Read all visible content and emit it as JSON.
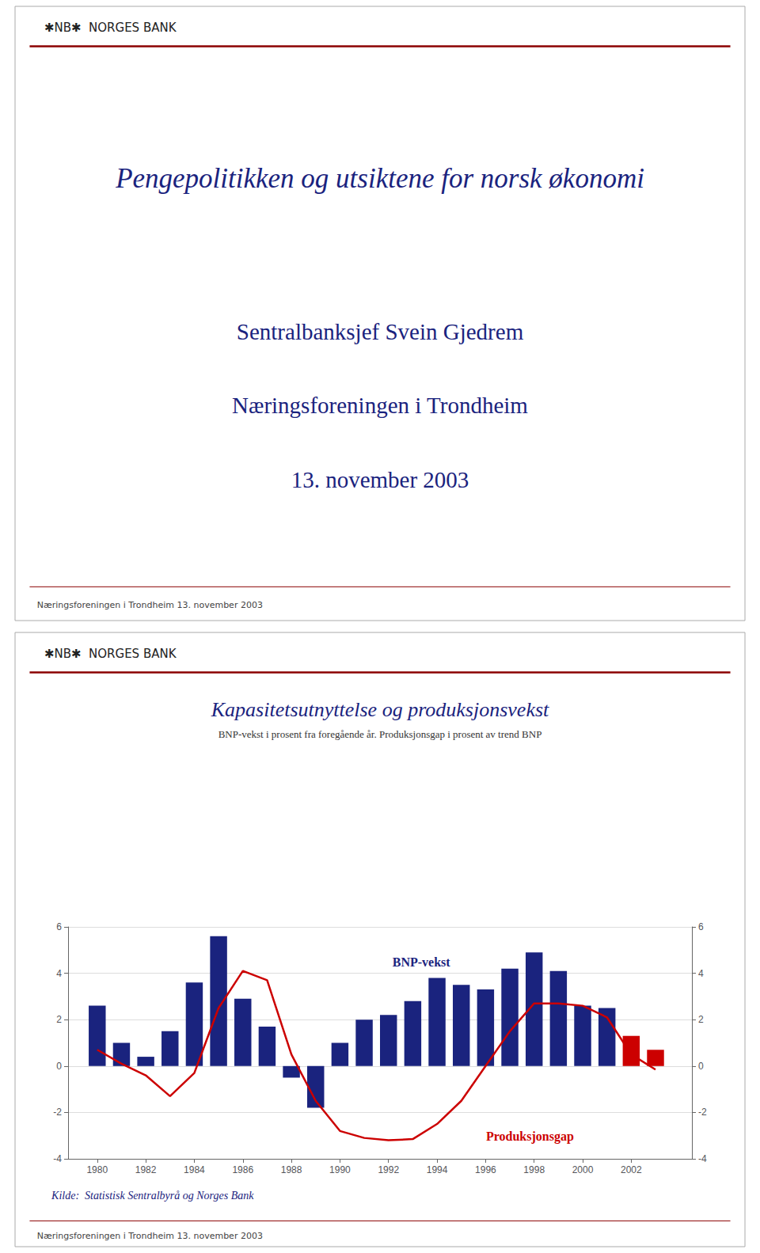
{
  "chart_data": {
    "type": "bar",
    "title": "Kapasitetsutnyttelse og produksjonsvekst",
    "subtitle": "BNP-vekst i prosent fra foregående år. Produksjonsgap i prosent av trend BNP",
    "annotations": [
      "✱NB✱  NORGES BANK",
      "Pengepolitikken og utsiktene for norsk økonomi",
      "Sentralbanksjef Svein Gjedrem",
      "Næringsforeningen i Trondheim",
      "13. november 2003",
      "Næringsforeningen i Trondheim 13. november 2003",
      "✱NB✱  NORGES BANK",
      "Kilde:  Statistisk Sentralbyrå og Norges Bank",
      "Næringsforeningen i Trondheim 13. november 2003"
    ],
    "x": [
      1980,
      1981,
      1982,
      1983,
      1984,
      1985,
      1986,
      1987,
      1988,
      1989,
      1990,
      1991,
      1992,
      1993,
      1994,
      1995,
      1996,
      1997,
      1998,
      1999,
      2000,
      2001,
      2002,
      2003
    ],
    "series": [
      {
        "name": "BNP-vekst",
        "type": "bar",
        "colors": [
          "#1a237e",
          "#1a237e",
          "#1a237e",
          "#1a237e",
          "#1a237e",
          "#1a237e",
          "#1a237e",
          "#1a237e",
          "#1a237e",
          "#1a237e",
          "#1a237e",
          "#1a237e",
          "#1a237e",
          "#1a237e",
          "#1a237e",
          "#1a237e",
          "#1a237e",
          "#1a237e",
          "#1a237e",
          "#1a237e",
          "#1a237e",
          "#1a237e",
          "#cc0000",
          "#cc0000"
        ],
        "values": [
          2.6,
          1.0,
          0.4,
          1.5,
          3.6,
          5.6,
          2.9,
          1.7,
          -0.5,
          -1.8,
          1.0,
          2.0,
          2.2,
          2.8,
          3.8,
          3.5,
          3.3,
          4.2,
          4.9,
          4.1,
          2.6,
          2.5,
          1.3,
          0.7
        ]
      },
      {
        "name": "Produksjonsgap",
        "type": "line",
        "color": "#cc0000",
        "values": [
          0.7,
          0.1,
          -0.4,
          -1.3,
          -0.3,
          2.5,
          4.1,
          3.7,
          0.5,
          -1.5,
          -2.8,
          -3.1,
          -3.2,
          -3.15,
          -2.5,
          -1.5,
          0.0,
          1.5,
          2.7,
          2.7,
          2.6,
          2.1,
          0.5,
          -0.15
        ]
      }
    ],
    "xlim": [
      1978.8,
      2004.5
    ],
    "xticks": [
      1980,
      1982,
      1984,
      1986,
      1988,
      1990,
      1992,
      1994,
      1996,
      1998,
      2000,
      2002
    ],
    "ylim": [
      -4,
      6
    ],
    "yticks": [
      -4,
      -2,
      0,
      2,
      4,
      6
    ],
    "y2lim": [
      -4,
      6
    ],
    "y2ticks": [
      -4,
      -2,
      0,
      2,
      4,
      6
    ],
    "grid": true
  }
}
